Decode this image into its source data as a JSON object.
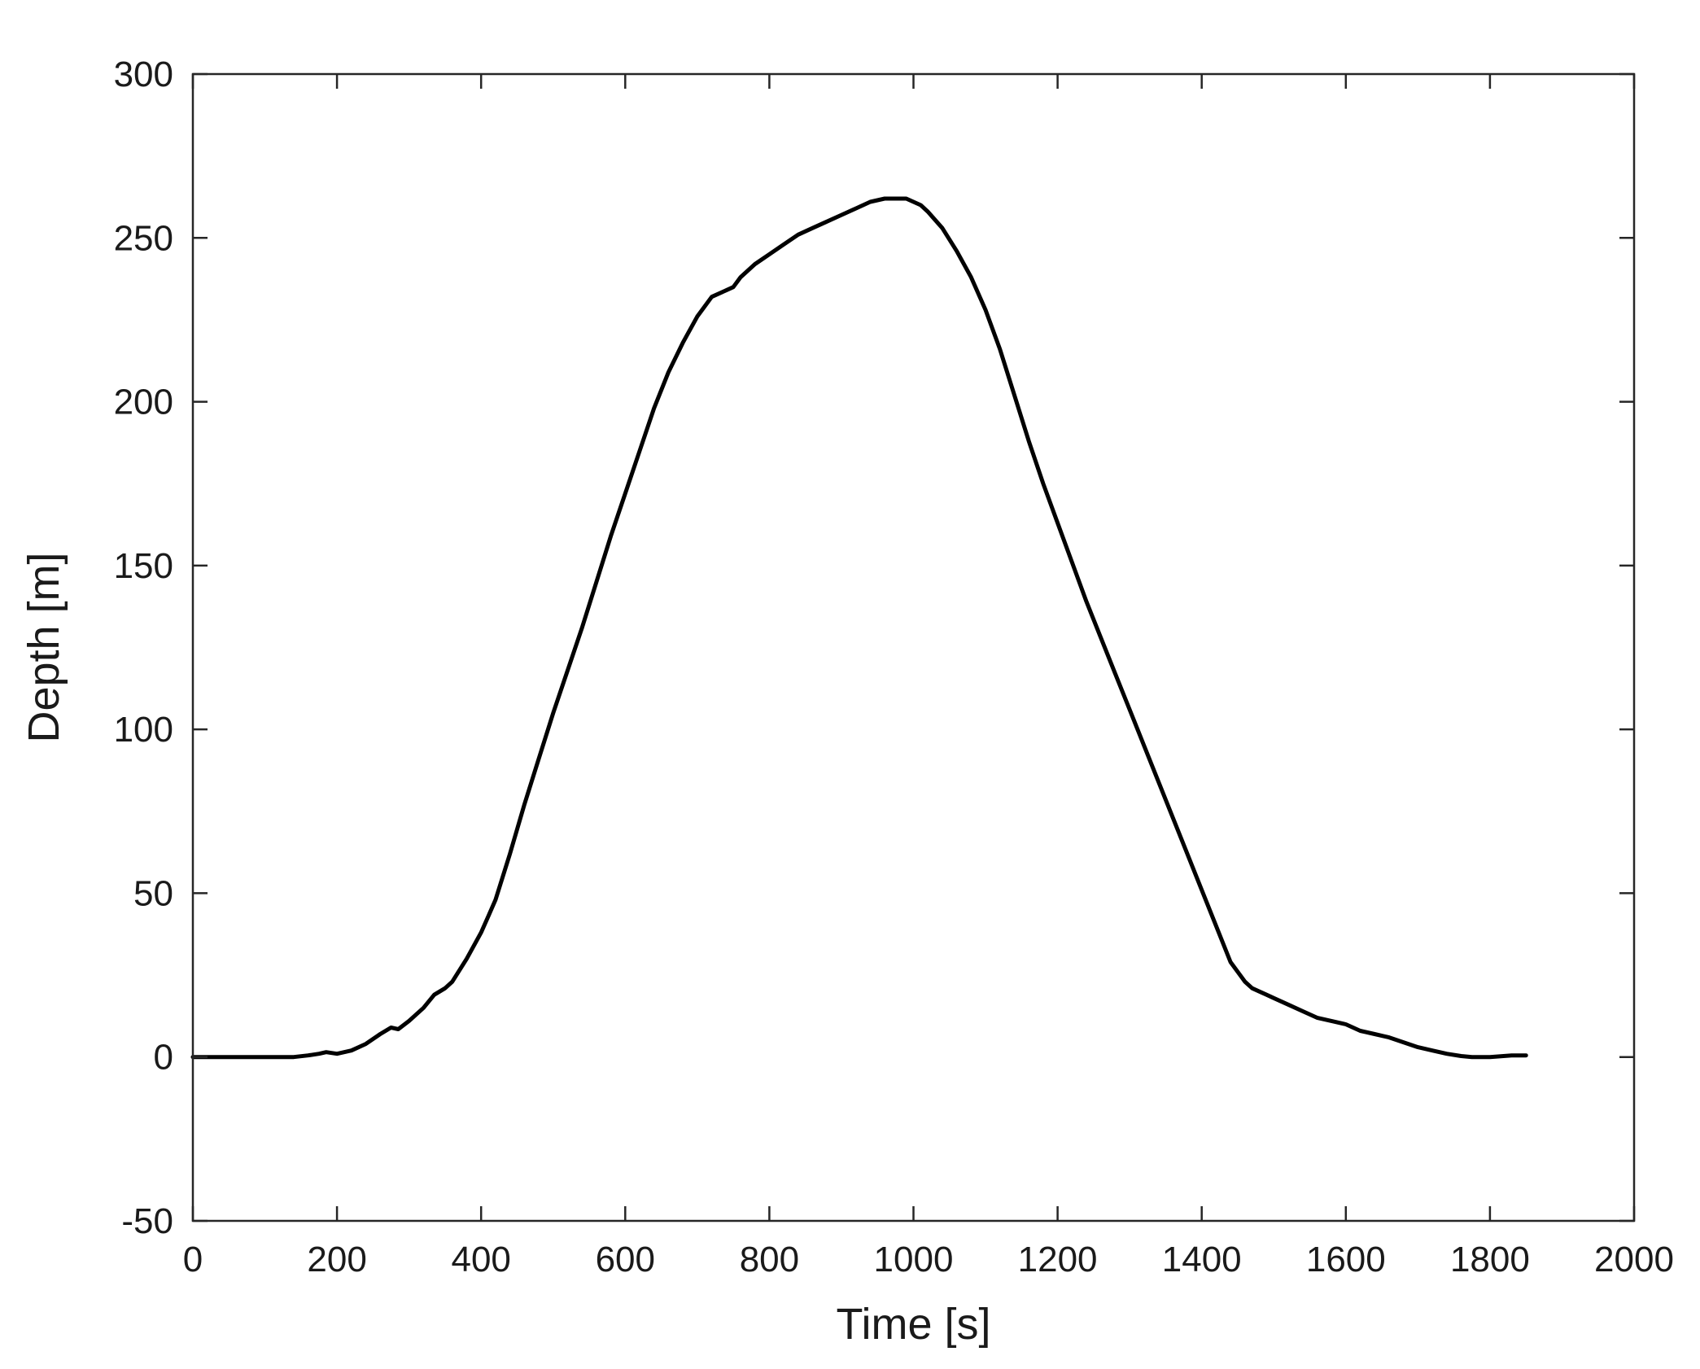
{
  "chart_data": {
    "type": "line",
    "title": "",
    "xlabel": "Time [s]",
    "ylabel": "Depth [m]",
    "xlim": [
      0,
      2000
    ],
    "ylim": [
      -50,
      300
    ],
    "xticks": [
      0,
      200,
      400,
      600,
      800,
      1000,
      1200,
      1400,
      1600,
      1800,
      2000
    ],
    "yticks": [
      -50,
      0,
      50,
      100,
      150,
      200,
      250,
      300
    ],
    "grid": false,
    "legend": "none",
    "line_color": "#000000",
    "series": [
      {
        "x": [
          0,
          50,
          100,
          140,
          160,
          175,
          185,
          200,
          220,
          240,
          260,
          275,
          285,
          300,
          320,
          335,
          350,
          360,
          380,
          400,
          410,
          420,
          440,
          460,
          480,
          500,
          520,
          540,
          560,
          580,
          600,
          620,
          640,
          660,
          680,
          700,
          720,
          740,
          750,
          760,
          780,
          800,
          820,
          840,
          860,
          880,
          900,
          920,
          940,
          960,
          975,
          990,
          1000,
          1010,
          1020,
          1040,
          1060,
          1080,
          1100,
          1120,
          1140,
          1160,
          1180,
          1200,
          1220,
          1240,
          1260,
          1280,
          1300,
          1320,
          1340,
          1360,
          1380,
          1400,
          1420,
          1440,
          1460,
          1470,
          1480,
          1490,
          1500,
          1520,
          1540,
          1560,
          1580,
          1600,
          1620,
          1640,
          1660,
          1680,
          1700,
          1720,
          1740,
          1760,
          1775,
          1800,
          1830,
          1850
        ],
        "y": [
          0,
          0,
          0,
          0,
          0.5,
          1,
          1.5,
          1,
          2,
          4,
          7,
          9,
          8.5,
          11,
          15,
          19,
          21,
          23,
          30,
          38,
          43,
          48,
          62,
          77,
          91,
          105,
          118,
          131,
          145,
          159,
          172,
          185,
          198,
          209,
          218,
          226,
          232,
          234,
          235,
          238,
          242,
          245,
          248,
          251,
          253,
          255,
          257,
          259,
          261,
          262,
          262,
          262,
          261,
          260,
          258,
          253,
          246,
          238,
          228,
          216,
          202,
          188,
          175,
          163,
          151,
          139,
          128,
          117,
          106,
          95,
          84,
          73,
          62,
          51,
          40,
          29,
          23,
          21,
          20,
          19,
          18,
          16,
          14,
          12,
          11,
          10,
          8,
          7,
          6,
          4.5,
          3,
          2,
          1,
          0.3,
          0,
          0,
          0.5,
          0.5
        ]
      }
    ]
  }
}
